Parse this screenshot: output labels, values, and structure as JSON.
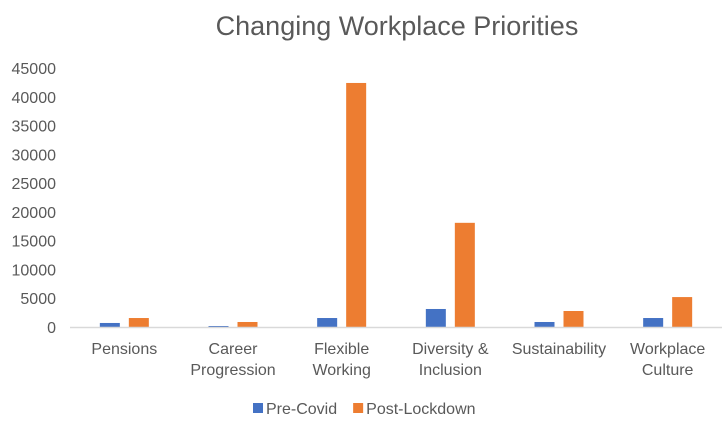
{
  "chart_data": {
    "type": "bar",
    "title": "Changing Workplace Priorities",
    "xlabel": "",
    "ylabel": "",
    "ylim": [
      0,
      45000
    ],
    "yticks": [
      0,
      5000,
      10000,
      15000,
      20000,
      25000,
      30000,
      35000,
      40000,
      45000
    ],
    "grid": false,
    "legend_position": "bottom",
    "categories": [
      [
        "Pensions"
      ],
      [
        "Career",
        "Progression"
      ],
      [
        "Flexible",
        "Working"
      ],
      [
        "Diversity &",
        "Inclusion"
      ],
      [
        "Sustainability"
      ],
      [
        "Workplace",
        "Culture"
      ]
    ],
    "series": [
      {
        "name": "Pre-Covid",
        "color": "#4472C4",
        "values": [
          700,
          170,
          1560,
          3130,
          870,
          1560
        ]
      },
      {
        "name": "Post-Lockdown",
        "color": "#ED7D31",
        "values": [
          1560,
          870,
          42400,
          18100,
          2780,
          5200
        ]
      }
    ]
  }
}
